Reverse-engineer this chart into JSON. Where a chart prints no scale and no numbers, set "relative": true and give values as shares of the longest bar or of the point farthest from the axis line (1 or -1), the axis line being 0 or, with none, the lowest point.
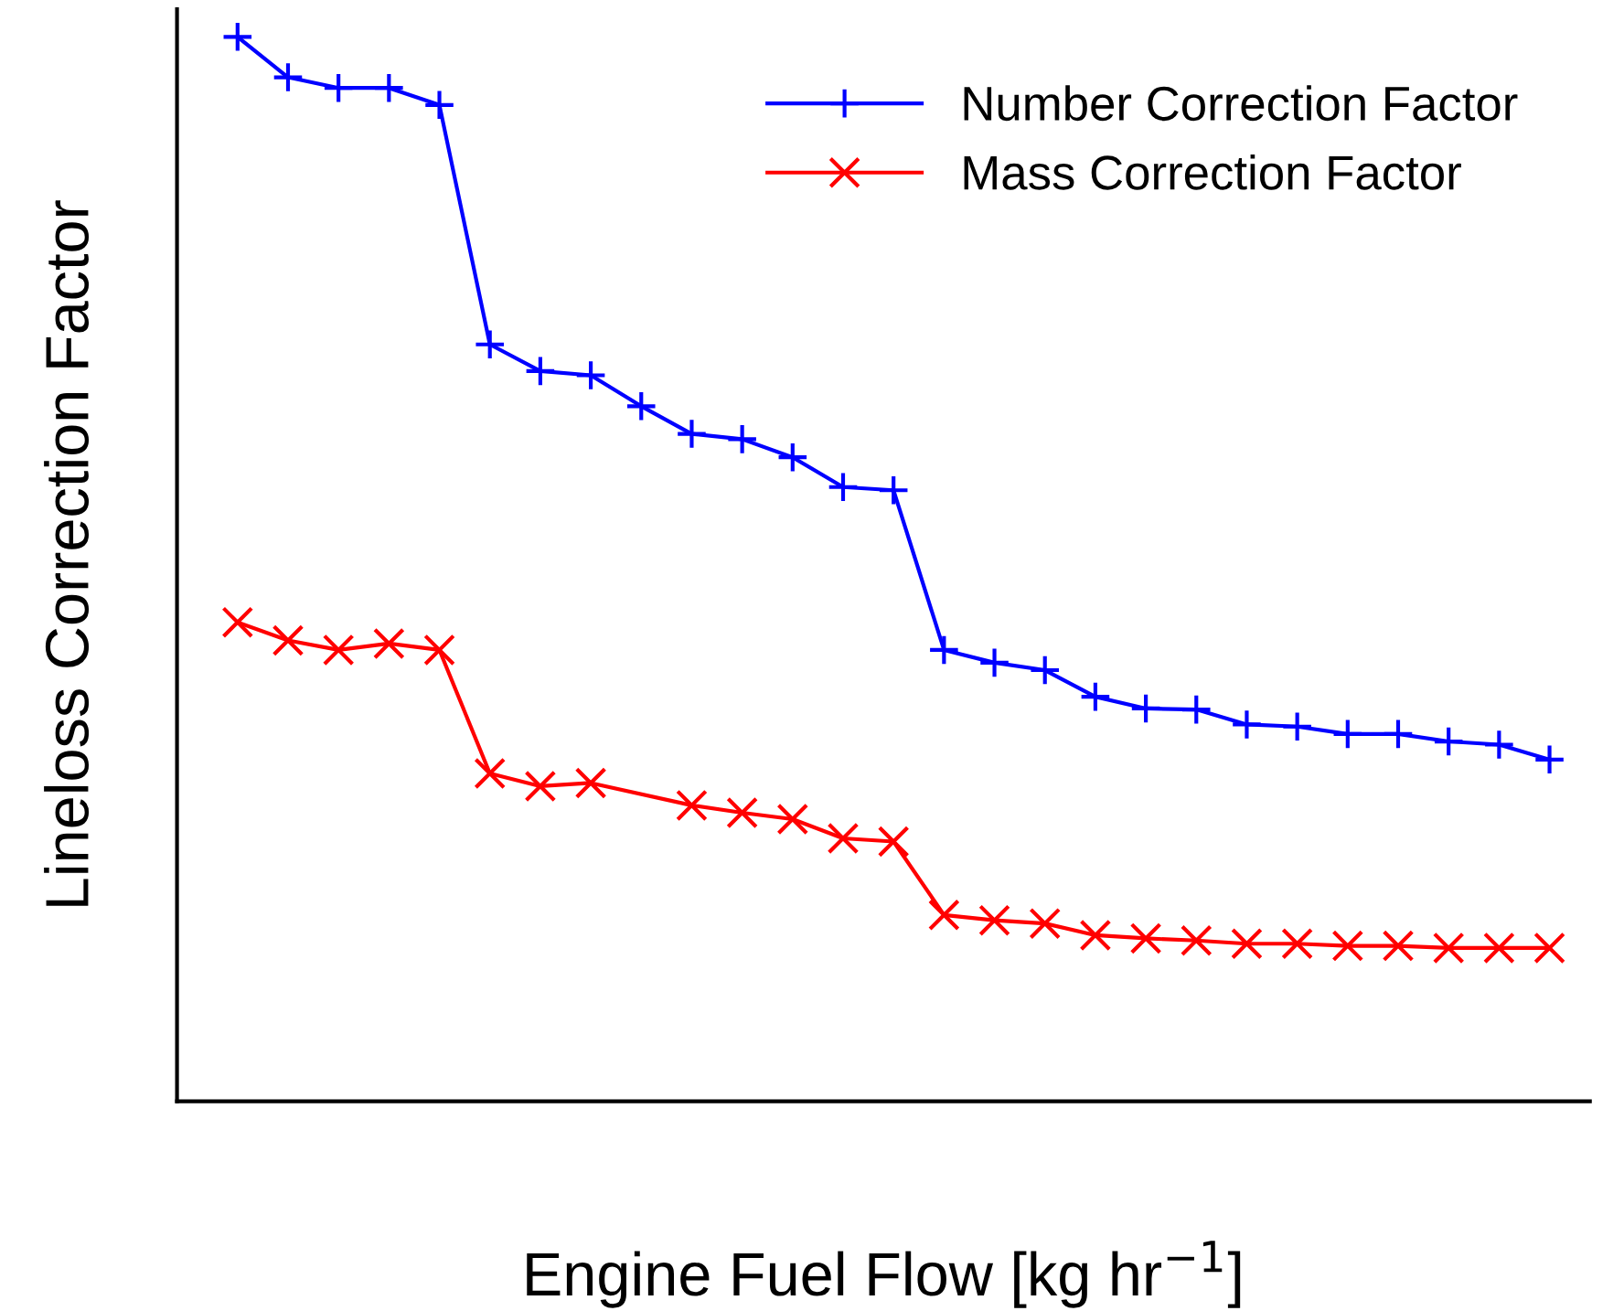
{
  "chart_data": {
    "type": "line",
    "relative": true,
    "xlabel": "Engine Fuel Flow [kg hr$^{−1}$]",
    "ylabel": "Lineloss Correction Factor",
    "tick_labels": false,
    "legend": "top right",
    "line_style": "solid",
    "categories": [
      null,
      null,
      null,
      null,
      null,
      null,
      null,
      null,
      null,
      null,
      null,
      null,
      null,
      null,
      null,
      null,
      null,
      null,
      null,
      null,
      null,
      null,
      null,
      null,
      null,
      null,
      null
    ],
    "series": [
      {
        "name": "Number Correction Factor",
        "color": "#0000ff",
        "marker": "cross",
        "values": [
          1.0,
          0.962,
          0.952,
          0.952,
          0.936,
          0.711,
          0.686,
          0.682,
          0.653,
          0.627,
          0.622,
          0.605,
          0.577,
          0.574,
          0.424,
          0.412,
          0.405,
          0.38,
          0.369,
          0.368,
          0.354,
          0.352,
          0.345,
          0.345,
          0.338,
          0.335,
          0.321
        ]
      },
      {
        "name": "Mass Correction Factor",
        "color": "#ff0000",
        "marker": "x",
        "values": [
          0.45,
          0.433,
          0.424,
          0.43,
          0.424,
          0.308,
          0.296,
          0.299,
          null,
          0.278,
          0.271,
          0.265,
          0.247,
          0.244,
          0.175,
          0.17,
          0.167,
          0.156,
          0.153,
          0.151,
          0.148,
          0.148,
          0.146,
          0.146,
          0.144,
          0.144,
          0.144
        ]
      }
    ]
  }
}
